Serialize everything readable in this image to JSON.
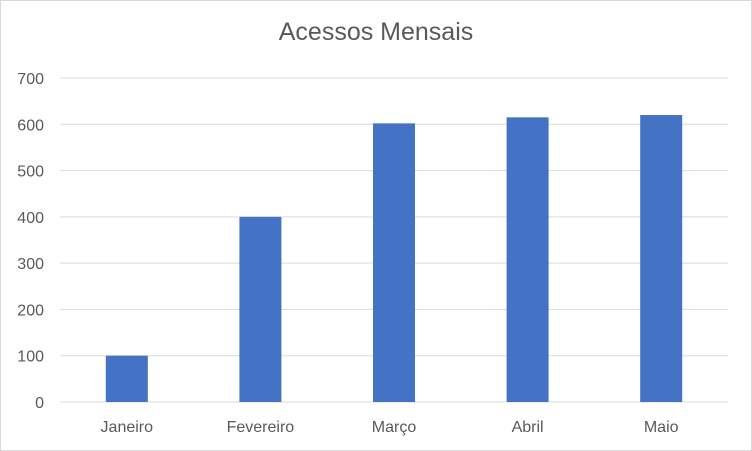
{
  "chart_data": {
    "type": "bar",
    "title": "Acessos Mensais",
    "xlabel": "",
    "ylabel": "",
    "categories": [
      "Janeiro",
      "Fevereiro",
      "Março",
      "Abril",
      "Maio"
    ],
    "values": [
      100,
      400,
      602,
      615,
      620
    ],
    "ylim": [
      0,
      700
    ],
    "yticks": [
      0,
      100,
      200,
      300,
      400,
      500,
      600,
      700
    ],
    "grid": true,
    "legend": "none",
    "colors": {
      "bar": "#4472c4",
      "grid": "#d9d9d9",
      "text": "#595959"
    }
  }
}
